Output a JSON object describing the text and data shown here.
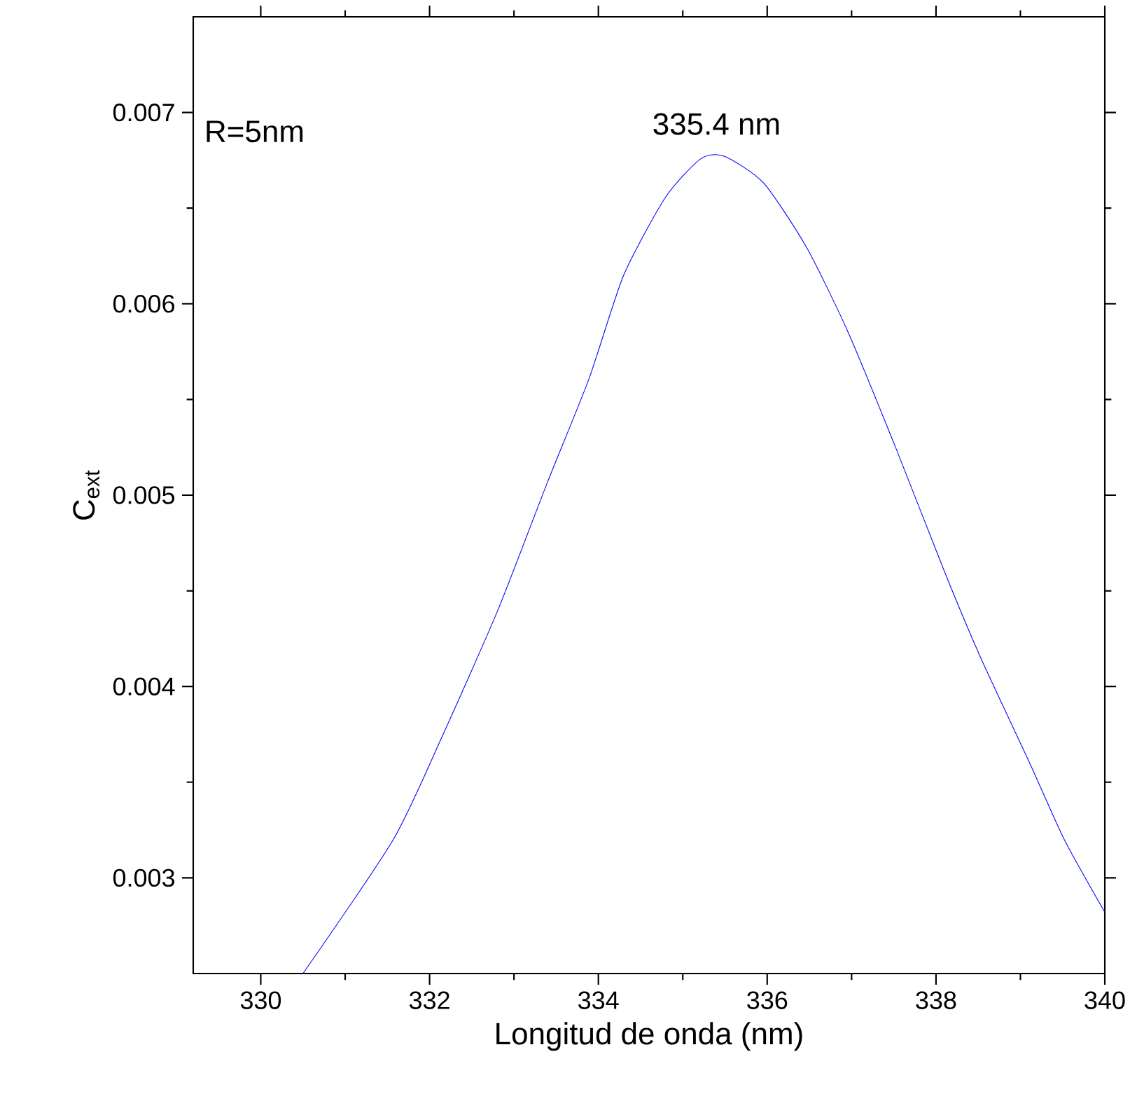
{
  "chart_data": {
    "type": "line",
    "xlabel": "Longitud de onda (nm)",
    "ylabel": "C$_{ext}$",
    "x": [
      330.5,
      331.57,
      332.15,
      332.81,
      333.39,
      333.89,
      334.3,
      334.8,
      335.22,
      335.5,
      335.96,
      336.46,
      336.95,
      337.53,
      338.11,
      338.53,
      339.11,
      339.52,
      340.0
    ],
    "series": [
      {
        "color": "#0000ff",
        "values": [
          0.0025,
          0.0032,
          0.00374,
          0.0044,
          0.00506,
          0.00561,
          0.00615,
          0.00656,
          0.00676,
          0.00677,
          0.00663,
          0.0063,
          0.00586,
          0.00524,
          0.00459,
          0.00415,
          0.0036,
          0.0032,
          0.00282
        ]
      }
    ],
    "xlim": [
      329.2,
      340
    ],
    "ylim": [
      0.0025,
      0.0075
    ],
    "xticks": [
      330,
      332,
      334,
      336,
      338,
      340
    ],
    "yticks": [
      0.003,
      0.004,
      0.005,
      0.006,
      0.007
    ],
    "annotations": [
      {
        "text": "335.4 nm",
        "x": 335.4,
        "y": 0.00677
      },
      "R=5nm"
    ],
    "grid": false,
    "marker": "none",
    "line_style": "solid"
  }
}
